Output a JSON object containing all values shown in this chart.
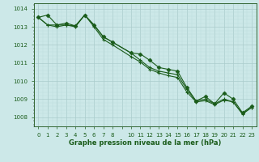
{
  "title": "Graphe pression niveau de la mer (hPa)",
  "bg_color": "#cce8e8",
  "plot_bg": "#cce8e8",
  "line_color": "#1a5c1a",
  "grid_major_color": "#aacccc",
  "grid_minor_color": "#bbdddd",
  "xlim": [
    -0.5,
    23.5
  ],
  "ylim": [
    1007.5,
    1014.3
  ],
  "yticks": [
    1008,
    1009,
    1010,
    1011,
    1012,
    1013,
    1014
  ],
  "xtick_labels": [
    "0",
    "1",
    "2",
    "3",
    "4",
    "5",
    "6",
    "7",
    "8",
    "",
    "10",
    "11",
    "12",
    "13",
    "14",
    "15",
    "16",
    "17",
    "18",
    "19",
    "20",
    "21",
    "22",
    "23"
  ],
  "xtick_pos": [
    0,
    1,
    2,
    3,
    4,
    5,
    6,
    7,
    8,
    9,
    10,
    11,
    12,
    13,
    14,
    15,
    16,
    17,
    18,
    19,
    20,
    21,
    22,
    23
  ],
  "series1_x": [
    0,
    1,
    2,
    3,
    4,
    5,
    6,
    7,
    8,
    10,
    11,
    12,
    13,
    14,
    15,
    16,
    17,
    18,
    19,
    20,
    21,
    22,
    23
  ],
  "series1_y": [
    1013.52,
    1013.65,
    1013.1,
    1013.2,
    1013.05,
    1013.65,
    1013.1,
    1012.45,
    1012.15,
    1011.55,
    1011.5,
    1011.15,
    1010.75,
    1010.65,
    1010.55,
    1009.65,
    1008.9,
    1009.15,
    1008.75,
    1009.35,
    1009.0,
    1008.25,
    1008.62
  ],
  "series2_x": [
    0,
    1,
    2,
    3,
    4,
    5,
    6,
    7,
    8,
    10,
    11,
    12,
    13,
    14,
    15,
    16,
    17,
    18,
    19,
    20,
    21,
    22,
    23
  ],
  "series2_y": [
    1013.52,
    1013.1,
    1013.1,
    1013.1,
    1013.05,
    1013.65,
    1013.1,
    1012.45,
    1012.15,
    1011.55,
    1011.15,
    1010.75,
    1010.55,
    1010.45,
    1010.35,
    1009.55,
    1008.9,
    1009.0,
    1008.75,
    1009.0,
    1008.85,
    1008.2,
    1008.55
  ],
  "series3_x": [
    0,
    1,
    2,
    3,
    4,
    5,
    6,
    7,
    8,
    10,
    11,
    12,
    13,
    14,
    15,
    16,
    17,
    18,
    19,
    20,
    21,
    22,
    23
  ],
  "series3_y": [
    1013.52,
    1013.1,
    1013.0,
    1013.1,
    1013.0,
    1013.65,
    1013.0,
    1012.3,
    1012.0,
    1011.35,
    1011.05,
    1010.65,
    1010.45,
    1010.3,
    1010.2,
    1009.4,
    1008.85,
    1008.92,
    1008.7,
    1008.95,
    1008.85,
    1008.18,
    1008.55
  ]
}
